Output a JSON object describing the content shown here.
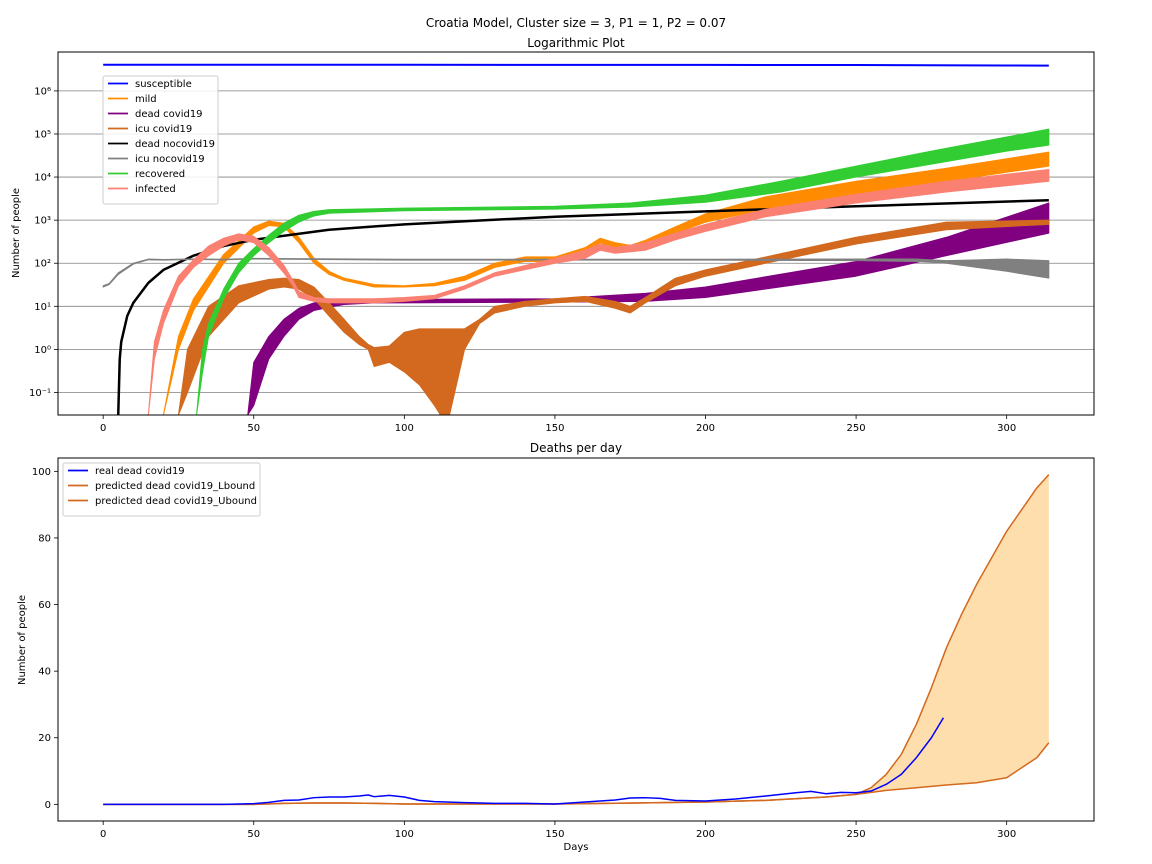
{
  "figure": {
    "suptitle": "Croatia Model, Cluster size = 3, P1 = 1, P2 = 0.07"
  },
  "chart_data": [
    {
      "type": "line",
      "title": "Logarithmic Plot",
      "xlabel": "",
      "ylabel": "Number of people",
      "xlim": [
        -15,
        329
      ],
      "ylim": [
        0.03,
        8000000
      ],
      "yscale": "log",
      "xticks": [
        0,
        50,
        100,
        150,
        200,
        250,
        300
      ],
      "yticks": [
        0.1,
        1,
        10,
        100,
        1000,
        10000,
        100000,
        1000000
      ],
      "ytick_labels": [
        "10⁻¹",
        "10⁰",
        "10¹",
        "10²",
        "10³",
        "10⁴",
        "10⁵",
        "10⁶"
      ],
      "grid": "y",
      "legend": "upper left",
      "series": [
        {
          "name": "susceptible",
          "color": "#0000ff",
          "band": false,
          "x": [
            0,
            100,
            200,
            250,
            300,
            314
          ],
          "y": [
            4050000,
            4040000,
            4010000,
            3980000,
            3900000,
            3850000
          ]
        },
        {
          "name": "mild",
          "color": "#ff8c00",
          "band": true,
          "x": [
            20,
            25,
            30,
            40,
            50,
            55,
            60,
            65,
            70,
            75,
            80,
            90,
            100,
            110,
            120,
            130,
            140,
            150,
            160,
            165,
            170,
            175,
            180,
            190,
            200,
            220,
            250,
            280,
            314
          ],
          "lower": [
            0.03,
            1,
            8,
            100,
            500,
            750,
            700,
            300,
            100,
            55,
            40,
            28,
            28,
            30,
            40,
            80,
            110,
            110,
            180,
            300,
            220,
            190,
            250,
            500,
            900,
            1800,
            4000,
            8000,
            18000
          ],
          "upper": [
            0.03,
            2,
            15,
            160,
            700,
            950,
            850,
            400,
            130,
            65,
            45,
            32,
            30,
            34,
            50,
            100,
            140,
            140,
            230,
            380,
            300,
            260,
            340,
            700,
            1400,
            3500,
            8000,
            16000,
            38000
          ]
        },
        {
          "name": "dead covid19",
          "color": "#800080",
          "band": true,
          "x": [
            48,
            50,
            55,
            60,
            65,
            70,
            75,
            80,
            90,
            100,
            150,
            180,
            200,
            250,
            280,
            314
          ],
          "lower": [
            0.03,
            0.05,
            0.6,
            2,
            5,
            8,
            9.5,
            11,
            12,
            12,
            12.5,
            13,
            16,
            50,
            150,
            500
          ],
          "upper": [
            0.03,
            0.5,
            2,
            5,
            9,
            12,
            13,
            14,
            14.5,
            14.5,
            15,
            20,
            28,
            110,
            400,
            2500
          ]
        },
        {
          "name": "icu covid19",
          "color": "#d2691e",
          "band": true,
          "x": [
            25,
            28,
            35,
            45,
            55,
            60,
            65,
            70,
            75,
            80,
            85,
            88,
            90,
            95,
            100,
            105,
            110,
            112,
            113,
            115,
            120,
            125,
            130,
            140,
            150,
            160,
            170,
            175,
            180,
            190,
            200,
            220,
            250,
            280,
            314
          ],
          "lower": [
            0.03,
            0.1,
            2,
            12,
            25,
            28,
            25,
            15,
            6,
            2.5,
            1.3,
            1.0,
            0.4,
            0.5,
            0.3,
            0.15,
            0.05,
            0.03,
            0.03,
            0.03,
            1,
            4,
            7,
            10,
            12,
            13,
            9,
            7,
            12,
            30,
            50,
            100,
            280,
            600,
            800
          ],
          "upper": [
            0.03,
            1,
            10,
            30,
            42,
            45,
            42,
            28,
            12,
            5,
            2,
            1.3,
            1.1,
            1.2,
            2.5,
            3,
            3,
            3,
            3,
            3,
            3,
            5,
            10,
            13,
            15,
            17,
            13,
            10,
            16,
            45,
            70,
            140,
            400,
            900,
            1000
          ]
        },
        {
          "name": "dead nocovid19",
          "color": "#000000",
          "band": false,
          "x": [
            5,
            5.5,
            6,
            8,
            10,
            15,
            20,
            30,
            40,
            50,
            75,
            100,
            150,
            200,
            250,
            314
          ],
          "y": [
            0.03,
            0.6,
            1.5,
            6,
            12,
            35,
            70,
            150,
            250,
            350,
            600,
            800,
            1200,
            1600,
            2100,
            2900
          ]
        },
        {
          "name": "icu nocovid19",
          "color": "#808080",
          "band": true,
          "x": [
            0,
            2,
            5,
            10,
            15,
            20,
            30,
            40,
            50,
            100,
            150,
            200,
            250,
            270,
            280,
            290,
            300,
            314
          ],
          "lower": [
            28,
            32,
            55,
            95,
            120,
            118,
            122,
            120,
            125,
            118,
            118,
            118,
            115,
            110,
            100,
            80,
            65,
            45
          ],
          "upper": [
            30,
            34,
            60,
            100,
            125,
            122,
            126,
            124,
            130,
            124,
            124,
            124,
            125,
            125,
            115,
            120,
            125,
            115
          ]
        },
        {
          "name": "recovered",
          "color": "#32cd32",
          "band": true,
          "x": [
            31,
            33,
            35,
            40,
            45,
            50,
            55,
            60,
            65,
            70,
            75,
            100,
            150,
            175,
            200,
            225,
            250,
            275,
            300,
            314
          ],
          "lower": [
            0.03,
            0.3,
            2,
            15,
            60,
            150,
            300,
            550,
            900,
            1250,
            1450,
            1650,
            1800,
            2000,
            2600,
            4500,
            10000,
            20000,
            40000,
            55000
          ],
          "upper": [
            0.03,
            1,
            4,
            25,
            100,
            220,
            450,
            850,
            1300,
            1600,
            1750,
            1900,
            2100,
            2500,
            3800,
            8000,
            18000,
            40000,
            85000,
            130000
          ]
        },
        {
          "name": "infected",
          "color": "#fa8072",
          "band": true,
          "x": [
            15,
            17,
            20,
            25,
            30,
            35,
            40,
            45,
            50,
            55,
            60,
            63,
            65,
            70,
            75,
            80,
            90,
            100,
            110,
            120,
            130,
            150,
            160,
            165,
            170,
            180,
            190,
            200,
            220,
            250,
            280,
            314
          ],
          "lower": [
            0.03,
            0.6,
            4,
            30,
            80,
            150,
            250,
            350,
            300,
            150,
            60,
            30,
            16,
            13,
            12,
            12,
            12,
            13,
            15,
            25,
            50,
            100,
            130,
            200,
            170,
            200,
            350,
            550,
            1200,
            2500,
            4500,
            8000
          ],
          "upper": [
            0.03,
            1.5,
            8,
            50,
            120,
            250,
            380,
            480,
            420,
            230,
            90,
            40,
            22,
            16,
            15,
            15,
            15,
            16,
            18,
            30,
            60,
            130,
            200,
            280,
            230,
            300,
            500,
            800,
            1800,
            4000,
            8000,
            15000
          ]
        }
      ]
    },
    {
      "type": "line",
      "title": "Deaths per day",
      "xlabel": "Days",
      "ylabel": "Number of people",
      "xlim": [
        -15,
        329
      ],
      "ylim": [
        -5,
        104
      ],
      "xticks": [
        0,
        50,
        100,
        150,
        200,
        250,
        300
      ],
      "yticks": [
        0,
        20,
        40,
        60,
        80,
        100
      ],
      "legend": "upper left",
      "band_color": "#ffdead",
      "series": [
        {
          "name": "real dead covid19",
          "color": "#0000ff",
          "x": [
            0,
            40,
            50,
            55,
            60,
            65,
            70,
            75,
            80,
            85,
            88,
            90,
            95,
            100,
            105,
            110,
            120,
            130,
            140,
            150,
            160,
            170,
            175,
            180,
            185,
            190,
            200,
            210,
            220,
            230,
            235,
            240,
            245,
            250,
            255,
            260,
            265,
            270,
            275,
            279
          ],
          "y": [
            0,
            0,
            0.2,
            0.6,
            1.2,
            1.3,
            2,
            2.2,
            2.2,
            2.5,
            2.8,
            2.3,
            2.7,
            2.2,
            1.2,
            0.8,
            0.5,
            0.3,
            0.3,
            0.1,
            0.7,
            1.3,
            1.9,
            2.0,
            1.8,
            1.2,
            1.0,
            1.6,
            2.5,
            3.5,
            3.9,
            3.2,
            3.6,
            3.5,
            4.0,
            6,
            9,
            14,
            20,
            26
          ]
        },
        {
          "name": "predicted dead covid19_Lbound",
          "color": "#d2691e",
          "x": [
            0,
            50,
            60,
            70,
            80,
            90,
            100,
            150,
            200,
            220,
            240,
            250,
            260,
            270,
            280,
            290,
            300,
            310,
            314
          ],
          "y": [
            0,
            0,
            0.3,
            0.4,
            0.4,
            0.3,
            0.1,
            0.1,
            0.7,
            1.2,
            2.2,
            3.0,
            4.2,
            5.0,
            5.8,
            6.5,
            8.0,
            14.0,
            18.5
          ]
        },
        {
          "name": "predicted dead covid19_Ubound",
          "color": "#d2691e",
          "x": [
            0,
            50,
            60,
            70,
            80,
            90,
            100,
            150,
            200,
            220,
            240,
            250,
            255,
            260,
            265,
            270,
            275,
            280,
            285,
            290,
            300,
            310,
            314
          ],
          "y": [
            0,
            0,
            0.3,
            0.4,
            0.4,
            0.3,
            0.1,
            0.1,
            0.7,
            1.2,
            2.2,
            3.0,
            5.0,
            9.0,
            15.0,
            24.0,
            35.0,
            47.0,
            57.0,
            66.0,
            82.0,
            95.0,
            99.0
          ]
        }
      ]
    }
  ]
}
